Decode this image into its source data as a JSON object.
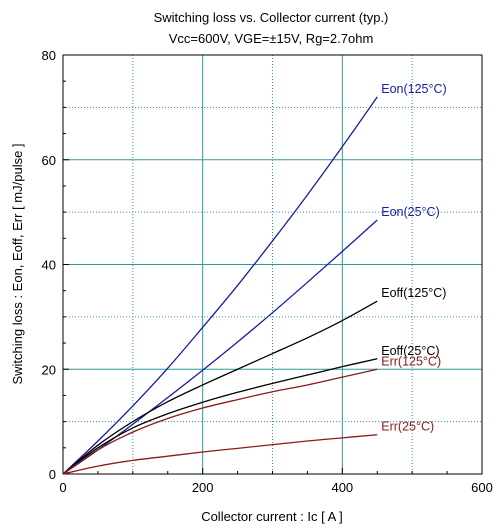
{
  "chart_data": {
    "type": "line",
    "title": "Switching loss  vs.  Collector current  (typ.)",
    "subtitle": "Vcc=600V, VGE=±15V, Rg=2.7ohm",
    "xlabel": "Collector current  :  Ic  [ A ]",
    "ylabel": "Switching loss  :  Eon, Eoff, Err  [ mJ/pulse ]",
    "xlim": [
      0,
      600
    ],
    "ylim": [
      0,
      80
    ],
    "xticks": [
      "0",
      "200",
      "400",
      "600"
    ],
    "yticks": [
      "0",
      "20",
      "40",
      "60",
      "80"
    ],
    "grid": true,
    "series": [
      {
        "name": "Eon(125°C)",
        "color": "#1a1aa6",
        "x": [
          0,
          50,
          100,
          150,
          200,
          250,
          300,
          350,
          400,
          450
        ],
        "y": [
          0,
          6.3,
          13.0,
          20.2,
          28.0,
          36.0,
          44.5,
          53.3,
          62.5,
          72.0
        ]
      },
      {
        "name": "Eon(25°C)",
        "color": "#1a1aa6",
        "x": [
          0,
          50,
          100,
          150,
          200,
          250,
          300,
          350,
          400,
          450
        ],
        "y": [
          0,
          4.6,
          9.5,
          14.6,
          19.8,
          25.2,
          30.8,
          36.6,
          42.5,
          48.5
        ]
      },
      {
        "name": "Eoff(125°C)",
        "color": "#000000",
        "x": [
          0,
          50,
          100,
          150,
          200,
          250,
          300,
          350,
          400,
          450
        ],
        "y": [
          0,
          5.5,
          10.0,
          13.8,
          17.0,
          20.0,
          23.0,
          26.0,
          29.3,
          33.0
        ]
      },
      {
        "name": "Eoff(25°C)",
        "color": "#000000",
        "x": [
          0,
          50,
          100,
          150,
          200,
          250,
          300,
          350,
          400,
          450
        ],
        "y": [
          0,
          5.0,
          8.8,
          11.5,
          13.7,
          15.6,
          17.3,
          18.9,
          20.5,
          22.0
        ]
      },
      {
        "name": "Err(125°C)",
        "color": "#8b1a1a",
        "x": [
          0,
          50,
          100,
          150,
          200,
          250,
          300,
          350,
          400,
          450
        ],
        "y": [
          0,
          4.6,
          8.0,
          10.6,
          12.6,
          14.2,
          15.7,
          17.0,
          18.5,
          20.0
        ]
      },
      {
        "name": "Err(25°C)",
        "color": "#8b1a1a",
        "x": [
          0,
          50,
          100,
          150,
          200,
          250,
          300,
          350,
          400,
          450
        ],
        "y": [
          0,
          1.5,
          2.6,
          3.4,
          4.2,
          4.9,
          5.6,
          6.3,
          6.9,
          7.5
        ]
      }
    ]
  }
}
